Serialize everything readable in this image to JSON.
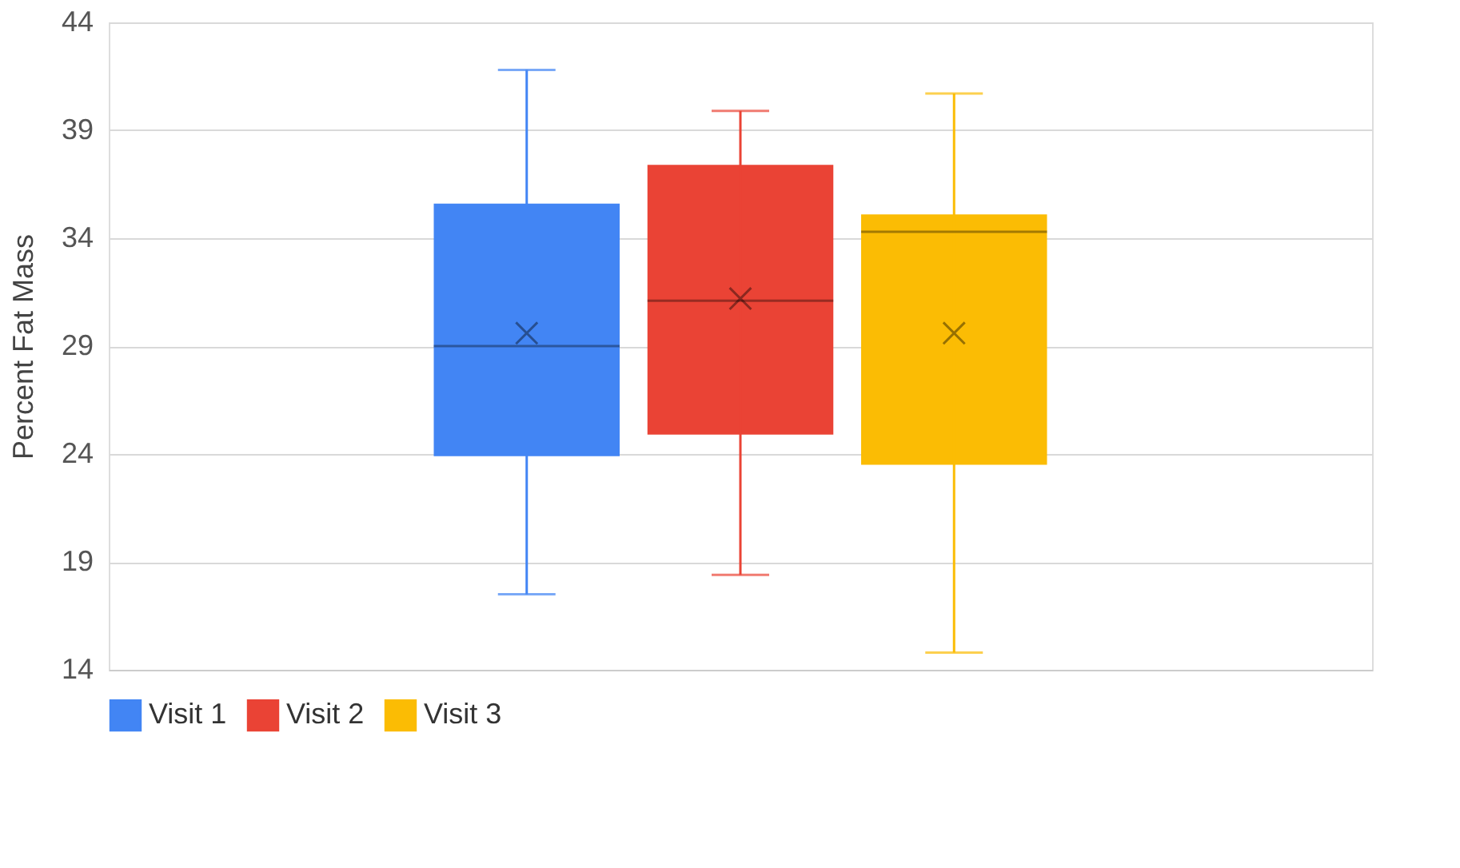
{
  "chart_data": {
    "type": "box",
    "ylabel": "Percent Fat Mass",
    "categories": [
      null
    ],
    "series": [
      {
        "name": "Visit 1",
        "color": "#4285f4",
        "boxes": [
          {
            "low": 17.5,
            "q1": 23.9,
            "median": 29.0,
            "q3": 35.6,
            "high": 41.8,
            "mean": 29.6
          }
        ]
      },
      {
        "name": "Visit 2",
        "color": "#ea4335",
        "boxes": [
          {
            "low": 18.4,
            "q1": 24.9,
            "median": 31.1,
            "q3": 37.4,
            "high": 39.9,
            "mean": 31.2
          }
        ]
      },
      {
        "name": "Visit 3",
        "color": "#fbbc04",
        "boxes": [
          {
            "low": 14.8,
            "q1": 23.5,
            "median": 34.3,
            "q3": 35.1,
            "high": 40.7,
            "mean": 29.6
          }
        ]
      }
    ],
    "ylim": [
      14,
      44
    ],
    "yticks": [
      14,
      19,
      24,
      29,
      34,
      39,
      44
    ],
    "grid": "y",
    "legend": "bottom",
    "tick_labels": "y"
  }
}
